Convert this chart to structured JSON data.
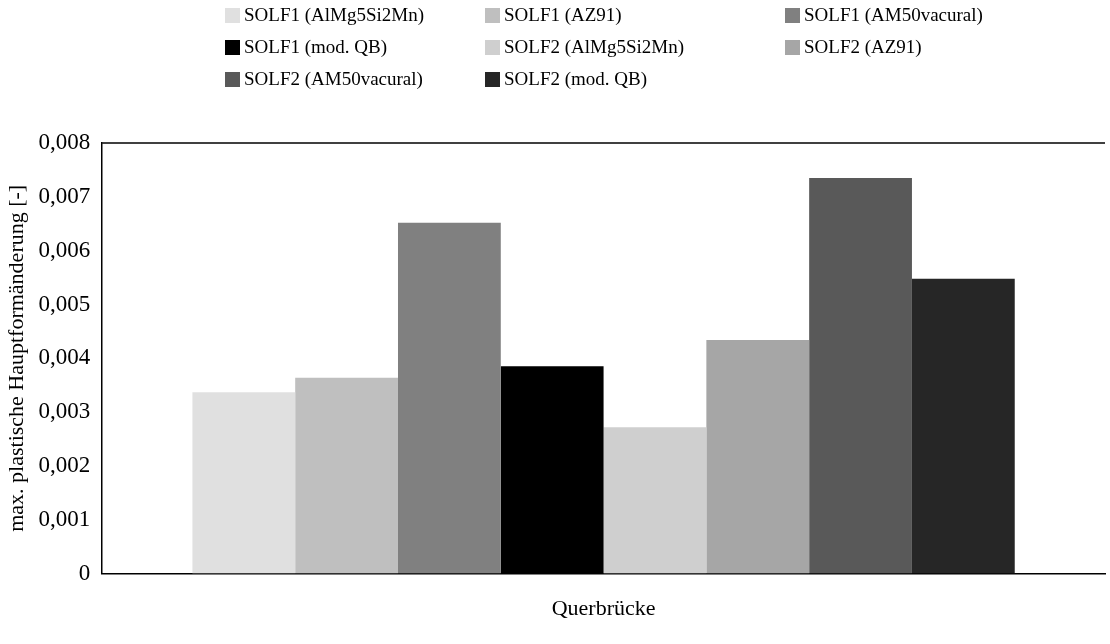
{
  "chart_data": {
    "type": "bar",
    "ylabel": "max. plastische Hauptformänderung [-]",
    "categories": [
      "Querbrücke"
    ],
    "series": [
      {
        "name": "SOLF1 (AlMg5Si2Mn)",
        "color": "#e0e0e0",
        "values": [
          0.00337
        ]
      },
      {
        "name": "SOLF1 (AZ91)",
        "color": "#bfbfbf",
        "values": [
          0.00364
        ]
      },
      {
        "name": "SOLF1 (AM50vacural)",
        "color": "#808080",
        "values": [
          0.00652
        ]
      },
      {
        "name": "SOLF1 (mod. QB)",
        "color": "#000000",
        "values": [
          0.00385
        ]
      },
      {
        "name": "SOLF2 (AlMg5Si2Mn)",
        "color": "#cfcfcf",
        "values": [
          0.00272
        ]
      },
      {
        "name": "SOLF2 (AZ91)",
        "color": "#a6a6a6",
        "values": [
          0.00434
        ]
      },
      {
        "name": "SOLF2 (AM50vacural)",
        "color": "#595959",
        "values": [
          0.00735
        ]
      },
      {
        "name": "SOLF2 (mod. QB)",
        "color": "#262626",
        "values": [
          0.00548
        ]
      }
    ],
    "ylim": [
      0,
      0.008
    ],
    "yticks": [
      0,
      {
        "value": 0.001,
        "label": "0,001"
      },
      {
        "value": 0.002,
        "label": "0,002"
      },
      {
        "value": 0.003,
        "label": "0,003"
      },
      {
        "value": 0.004,
        "label": "0,004"
      },
      {
        "value": 0.005,
        "label": "0,005"
      },
      {
        "value": 0.006,
        "label": "0,006"
      },
      {
        "value": 0.007,
        "label": "0,007"
      },
      {
        "value": 0.008,
        "label": "0,008"
      }
    ],
    "grid": false,
    "legend": "top"
  }
}
